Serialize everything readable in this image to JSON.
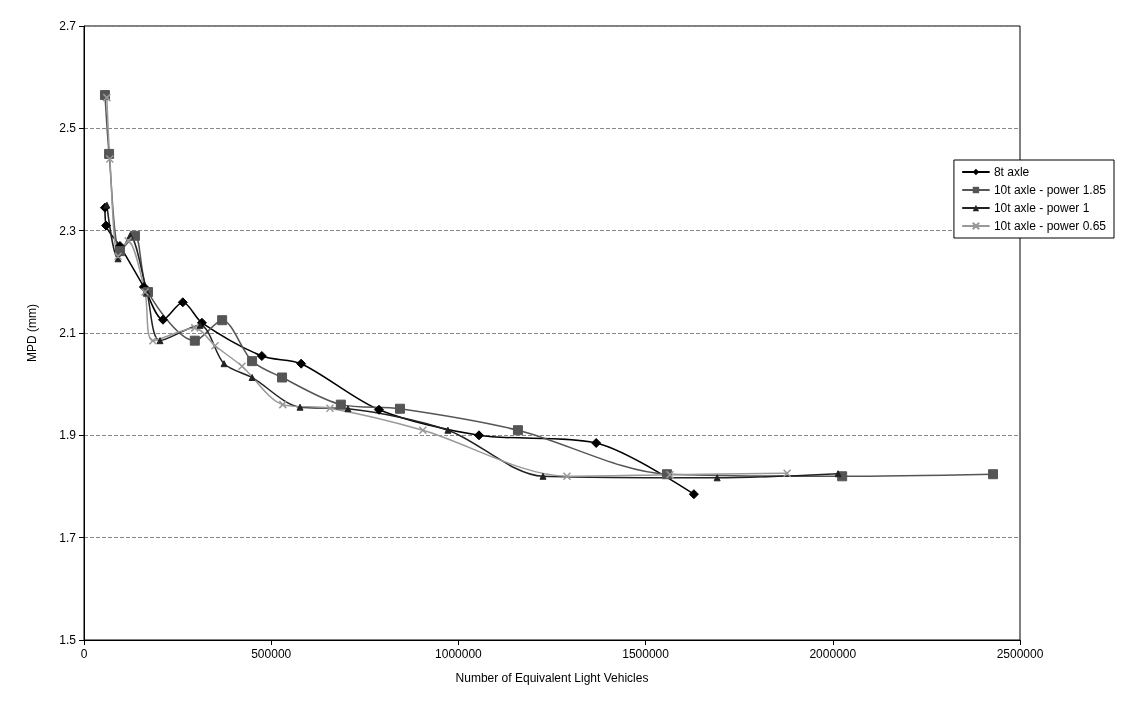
{
  "chart_data": {
    "type": "line",
    "xlabel": "Number of Equivalent Light Vehicles",
    "ylabel": "MPD (mm)",
    "xlim": [
      0,
      2500000
    ],
    "xticks": [
      0,
      500000,
      1000000,
      1500000,
      2000000,
      2500000
    ],
    "ylim": [
      1.5,
      2.7
    ],
    "yticks": [
      1.5,
      1.7,
      1.9,
      2.1,
      2.3,
      2.5,
      2.7
    ],
    "grid": "y",
    "legend": "right",
    "series": [
      {
        "name": "8t axle",
        "color": "#000000",
        "marker": "diamond",
        "line_style": "solid",
        "x": [
          56000,
          59000,
          96000,
          160000,
          211000,
          264000,
          315000,
          475000,
          580000,
          788000,
          1055000,
          1368000,
          1629000
        ],
        "values": [
          2.345,
          2.31,
          2.27,
          2.19,
          2.126,
          2.16,
          2.12,
          2.055,
          2.04,
          1.95,
          1.9,
          1.885,
          1.785
        ]
      },
      {
        "name": "10t axle - power 1.85",
        "color": "#555555",
        "marker": "square",
        "line_style": "solid",
        "x": [
          56000,
          67000,
          96000,
          136000,
          171000,
          296000,
          369000,
          449000,
          529000,
          686000,
          844000,
          1159000,
          1557000,
          2025000,
          2428000
        ],
        "values": [
          2.565,
          2.45,
          2.26,
          2.29,
          2.18,
          2.085,
          2.125,
          2.045,
          2.013,
          1.96,
          1.952,
          1.91,
          1.824,
          1.82,
          1.824
        ]
      },
      {
        "name": "10t axle - power 1",
        "color": "#222222",
        "marker": "triangle",
        "line_style": "solid",
        "x": [
          61000,
          91000,
          123000,
          168000,
          203000,
          310000,
          374000,
          449000,
          577000,
          705000,
          972000,
          1226000,
          1691000,
          2014000
        ],
        "values": [
          2.35,
          2.245,
          2.29,
          2.18,
          2.085,
          2.115,
          2.04,
          2.013,
          1.955,
          1.952,
          1.91,
          1.82,
          1.817,
          1.825
        ]
      },
      {
        "name": "10t axle - power 0.65",
        "color": "#999999",
        "marker": "cross",
        "line_style": "solid",
        "x": [
          61000,
          69000,
          91000,
          118000,
          163000,
          184000,
          296000,
          350000,
          422000,
          531000,
          657000,
          905000,
          1290000,
          1565000,
          1878000
        ],
        "values": [
          2.56,
          2.44,
          2.25,
          2.28,
          2.18,
          2.085,
          2.11,
          2.075,
          2.035,
          1.96,
          1.953,
          1.91,
          1.82,
          1.823,
          1.826
        ]
      }
    ]
  }
}
